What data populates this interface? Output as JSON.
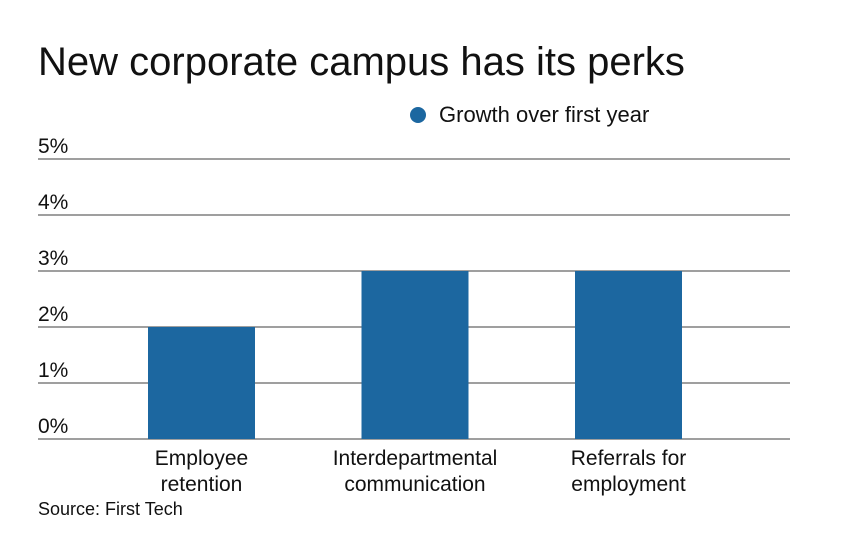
{
  "chart_data": {
    "type": "bar",
    "title": "New corporate campus has its perks",
    "categories": [
      [
        "Employee",
        "retention"
      ],
      [
        "Interdepartmental",
        "communication"
      ],
      [
        "Referrals for",
        "employment"
      ]
    ],
    "series": [
      {
        "name": "Growth over first year",
        "values": [
          2,
          3,
          3
        ],
        "color": "#1c67a0"
      }
    ],
    "ylim": [
      0,
      5
    ],
    "yticks": [
      "0%",
      "1%",
      "2%",
      "3%",
      "4%",
      "5%"
    ],
    "grid": true,
    "legend": "top-right",
    "source": "Source: First Tech"
  }
}
